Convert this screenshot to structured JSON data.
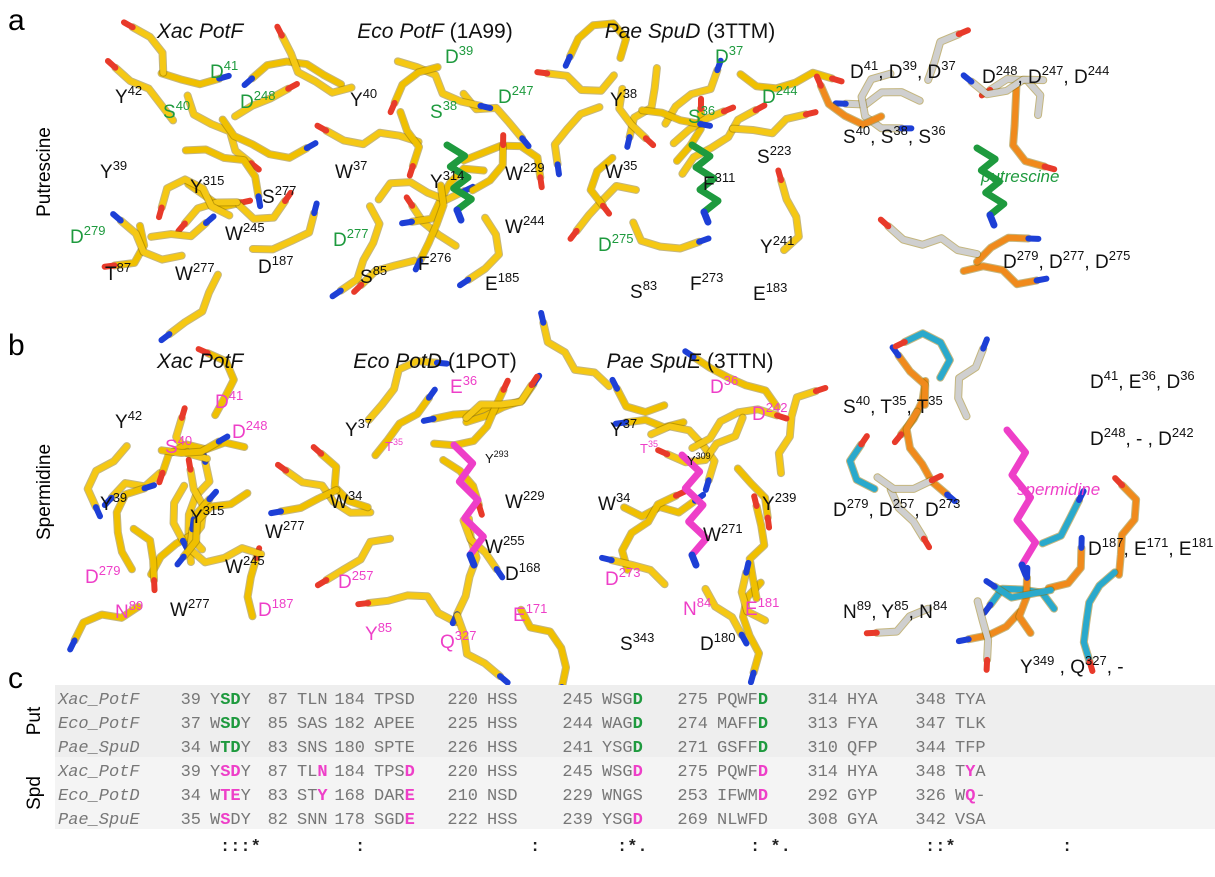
{
  "colors": {
    "green": "#1e9a3e",
    "magenta": "#ee3fc8"
  },
  "panel_a": {
    "letter": "a",
    "row_label": "Putrescine",
    "structures": [
      {
        "name": "Xac PotF",
        "labels": [
          {
            "parts": [
              "D",
              "41"
            ],
            "color": "green"
          },
          {
            "parts": [
              "Y",
              "42"
            ]
          },
          {
            "parts": [
              "S",
              "40"
            ],
            "color": "green"
          },
          {
            "parts": [
              "D",
              "248"
            ],
            "color": "green"
          },
          {
            "parts": [
              "Y",
              "39"
            ]
          },
          {
            "parts": [
              "Y",
              "315"
            ]
          },
          {
            "parts": [
              "S",
              "277"
            ]
          },
          {
            "parts": [
              "W",
              "245"
            ]
          },
          {
            "parts": [
              "D",
              "279"
            ],
            "color": "green"
          },
          {
            "parts": [
              "T",
              "87"
            ]
          },
          {
            "parts": [
              "W",
              "277"
            ]
          },
          {
            "parts": [
              "D",
              "187"
            ]
          }
        ]
      },
      {
        "name": "Eco PotF",
        "pdb": "(1A99)",
        "labels": [
          {
            "parts": [
              "D",
              "39"
            ],
            "color": "green"
          },
          {
            "parts": [
              "D",
              "247"
            ],
            "color": "green"
          },
          {
            "parts": [
              "Y",
              "40"
            ]
          },
          {
            "parts": [
              "S",
              "38"
            ],
            "color": "green"
          },
          {
            "parts": [
              "W",
              "37"
            ]
          },
          {
            "parts": [
              "Y",
              "314"
            ]
          },
          {
            "parts": [
              "W",
              "229"
            ]
          },
          {
            "parts": [
              "D",
              "277"
            ],
            "color": "green"
          },
          {
            "parts": [
              "W",
              "244"
            ]
          },
          {
            "parts": [
              "S",
              "85"
            ]
          },
          {
            "parts": [
              "F",
              "276"
            ]
          },
          {
            "parts": [
              "E",
              "185"
            ]
          }
        ]
      },
      {
        "name": "Pae SpuD",
        "pdb": "(3TTM)",
        "labels": [
          {
            "parts": [
              "D",
              "37"
            ],
            "color": "green"
          },
          {
            "parts": [
              "D",
              "244"
            ],
            "color": "green"
          },
          {
            "parts": [
              "Y",
              "38"
            ]
          },
          {
            "parts": [
              "S",
              "36"
            ],
            "color": "green"
          },
          {
            "parts": [
              "S",
              "223"
            ]
          },
          {
            "parts": [
              "W",
              "35"
            ]
          },
          {
            "parts": [
              "F",
              "311"
            ]
          },
          {
            "parts": [
              "Y",
              "241"
            ]
          },
          {
            "parts": [
              "D",
              "275"
            ],
            "color": "green"
          },
          {
            "parts": [
              "S",
              "83"
            ]
          },
          {
            "parts": [
              "F",
              "273"
            ]
          },
          {
            "parts": [
              "E",
              "183"
            ]
          }
        ]
      }
    ],
    "overlay": {
      "ligand": "putrescine",
      "ligand_color": "green",
      "labels": [
        {
          "parts": [
            "D",
            "41",
            ", D",
            "39",
            ", D",
            "37"
          ]
        },
        {
          "parts": [
            "D",
            "248",
            ", D",
            "247",
            ", D",
            "244"
          ]
        },
        {
          "parts": [
            "S",
            "40",
            ", S",
            "38",
            ", S",
            "36"
          ]
        },
        {
          "parts": [
            "D",
            "279",
            ", D",
            "277",
            ", D",
            "275"
          ]
        }
      ]
    }
  },
  "panel_b": {
    "letter": "b",
    "row_label": "Spermidine",
    "structures": [
      {
        "name": "Xac PotF",
        "labels": [
          {
            "parts": [
              "D",
              "41"
            ],
            "color": "magenta"
          },
          {
            "parts": [
              "Y",
              "42"
            ]
          },
          {
            "parts": [
              "S",
              "40"
            ],
            "color": "magenta"
          },
          {
            "parts": [
              "D",
              "248"
            ],
            "color": "magenta"
          },
          {
            "parts": [
              "Y",
              "39"
            ]
          },
          {
            "parts": [
              "Y",
              "315"
            ]
          },
          {
            "parts": [
              "W",
              "277"
            ]
          },
          {
            "parts": [
              "W",
              "245"
            ]
          },
          {
            "parts": [
              "D",
              "279"
            ],
            "color": "magenta"
          },
          {
            "parts": [
              "N",
              "89"
            ],
            "color": "magenta"
          },
          {
            "parts": [
              "W",
              "277"
            ]
          },
          {
            "parts": [
              "D",
              "187"
            ],
            "color": "magenta"
          }
        ]
      },
      {
        "name": "Eco PotD",
        "pdb": "(1POT)",
        "labels": [
          {
            "parts": [
              "E",
              "36"
            ],
            "color": "magenta"
          },
          {
            "parts": [
              "Y",
              "37"
            ]
          },
          {
            "parts": [
              "T",
              "35"
            ],
            "color": "magenta"
          },
          {
            "parts": [
              "Y",
              "293"
            ]
          },
          {
            "parts": [
              "W",
              "34"
            ]
          },
          {
            "parts": [
              "W",
              "229"
            ]
          },
          {
            "parts": [
              "W",
              "255"
            ]
          },
          {
            "parts": [
              "D",
              "168"
            ]
          },
          {
            "parts": [
              "D",
              "257"
            ],
            "color": "magenta"
          },
          {
            "parts": [
              "E",
              "171"
            ],
            "color": "magenta"
          },
          {
            "parts": [
              "Y",
              "85"
            ],
            "color": "magenta"
          },
          {
            "parts": [
              "Q",
              "327"
            ],
            "color": "magenta"
          }
        ]
      },
      {
        "name": "Pae SpuE",
        "pdb": "(3TTN)",
        "labels": [
          {
            "parts": [
              "D",
              "36"
            ],
            "color": "magenta"
          },
          {
            "parts": [
              "D",
              "242"
            ],
            "color": "magenta"
          },
          {
            "parts": [
              "Y",
              "37"
            ]
          },
          {
            "parts": [
              "T",
              "35"
            ],
            "color": "magenta"
          },
          {
            "parts": [
              "Y",
              "309"
            ]
          },
          {
            "parts": [
              "W",
              "34"
            ]
          },
          {
            "parts": [
              "Y",
              "239"
            ]
          },
          {
            "parts": [
              "W",
              "271"
            ]
          },
          {
            "parts": [
              "D",
              "273"
            ],
            "color": "magenta"
          },
          {
            "parts": [
              "E",
              "181"
            ],
            "color": "magenta"
          },
          {
            "parts": [
              "N",
              "84"
            ],
            "color": "magenta"
          },
          {
            "parts": [
              "S",
              "343"
            ]
          },
          {
            "parts": [
              "D",
              "180"
            ]
          }
        ]
      }
    ],
    "overlay": {
      "ligand": "spermidine",
      "ligand_color": "magenta",
      "labels": [
        {
          "parts": [
            "S",
            "40",
            ", T",
            "35",
            ", T",
            "35"
          ]
        },
        {
          "parts": [
            "D",
            "41",
            ", E",
            "36",
            ", D",
            "36"
          ]
        },
        {
          "parts": [
            "D",
            "248",
            ", - , D",
            "242"
          ]
        },
        {
          "parts": [
            "D",
            "279",
            ", D",
            "257",
            ", D",
            "273"
          ]
        },
        {
          "parts": [
            "D",
            "187",
            ", E",
            "171",
            ", E",
            "181"
          ]
        },
        {
          "parts": [
            "N",
            "89",
            ", Y",
            "85",
            ", N",
            "84"
          ]
        },
        {
          "parts": [
            "Y",
            "349",
            " , Q",
            "327",
            ", -"
          ]
        }
      ]
    }
  },
  "panel_c": {
    "letter": "c",
    "groups": [
      "Put",
      "Spd"
    ],
    "rows": [
      {
        "name": "Xac_PotF",
        "highlight": "green",
        "cells": [
          [
            39,
            [
              "Y",
              "SD",
              "Y"
            ]
          ],
          [
            87,
            [
              "TLN"
            ]
          ],
          [
            184,
            [
              "TPSD"
            ]
          ],
          [
            220,
            [
              "HSS"
            ]
          ],
          [
            245,
            [
              "WSG",
              "D"
            ]
          ],
          [
            275,
            [
              "PQWF",
              "D"
            ]
          ],
          [
            314,
            [
              "HYA"
            ]
          ],
          [
            348,
            [
              "TYA"
            ]
          ]
        ]
      },
      {
        "name": "Eco_PotF",
        "highlight": "green",
        "cells": [
          [
            37,
            [
              "W",
              "SD",
              "Y"
            ]
          ],
          [
            85,
            [
              "SAS"
            ]
          ],
          [
            182,
            [
              "APEE"
            ]
          ],
          [
            225,
            [
              "HSS"
            ]
          ],
          [
            244,
            [
              "WAG",
              "D"
            ]
          ],
          [
            274,
            [
              "MAFF",
              "D"
            ]
          ],
          [
            313,
            [
              "FYA"
            ]
          ],
          [
            347,
            [
              "TLK"
            ]
          ]
        ]
      },
      {
        "name": "Pae_SpuD",
        "highlight": "green",
        "cells": [
          [
            34,
            [
              "W",
              "TD",
              "Y"
            ]
          ],
          [
            83,
            [
              "SNS"
            ]
          ],
          [
            180,
            [
              "SPTE"
            ]
          ],
          [
            226,
            [
              "HSS"
            ]
          ],
          [
            241,
            [
              "YSG",
              "D"
            ]
          ],
          [
            271,
            [
              "GSFF",
              "D"
            ]
          ],
          [
            310,
            [
              "QFP"
            ]
          ],
          [
            344,
            [
              "TFP"
            ]
          ]
        ]
      },
      {
        "name": "Xac_PotF",
        "highlight": "magenta",
        "cells": [
          [
            39,
            [
              "Y",
              "SD",
              "Y"
            ]
          ],
          [
            87,
            [
              "TL",
              "N"
            ]
          ],
          [
            184,
            [
              "TPS",
              "D"
            ]
          ],
          [
            220,
            [
              "HSS"
            ]
          ],
          [
            245,
            [
              "WSG",
              "D"
            ]
          ],
          [
            275,
            [
              "PQWF",
              "D"
            ]
          ],
          [
            314,
            [
              "HYA"
            ]
          ],
          [
            348,
            [
              "T",
              "Y",
              "A"
            ]
          ]
        ]
      },
      {
        "name": "Eco_PotD",
        "highlight": "magenta",
        "cells": [
          [
            34,
            [
              "W",
              "TE",
              "Y"
            ]
          ],
          [
            83,
            [
              "ST",
              "Y"
            ]
          ],
          [
            168,
            [
              "DAR",
              "E"
            ]
          ],
          [
            210,
            [
              "NSD"
            ]
          ],
          [
            229,
            [
              "WNGS"
            ]
          ],
          [
            253,
            [
              "IFWM",
              "D"
            ]
          ],
          [
            292,
            [
              "GYP"
            ]
          ],
          [
            326,
            [
              "W",
              "Q",
              "-"
            ]
          ]
        ]
      },
      {
        "name": "Pae_SpuE",
        "highlight": "magenta",
        "cells": [
          [
            35,
            [
              "W",
              "S",
              "DY"
            ]
          ],
          [
            82,
            [
              "SNN"
            ]
          ],
          [
            178,
            [
              "SGD",
              "E"
            ]
          ],
          [
            222,
            [
              "HSS"
            ]
          ],
          [
            239,
            [
              "YSG",
              "D"
            ]
          ],
          [
            269,
            [
              "NLWFD"
            ]
          ],
          [
            308,
            [
              "GYA"
            ]
          ],
          [
            342,
            [
              "VSA"
            ]
          ]
        ]
      }
    ],
    "conservation": [
      ":::*",
      ":",
      ":",
      ":*.",
      ": *.",
      "::*",
      ":"
    ]
  }
}
